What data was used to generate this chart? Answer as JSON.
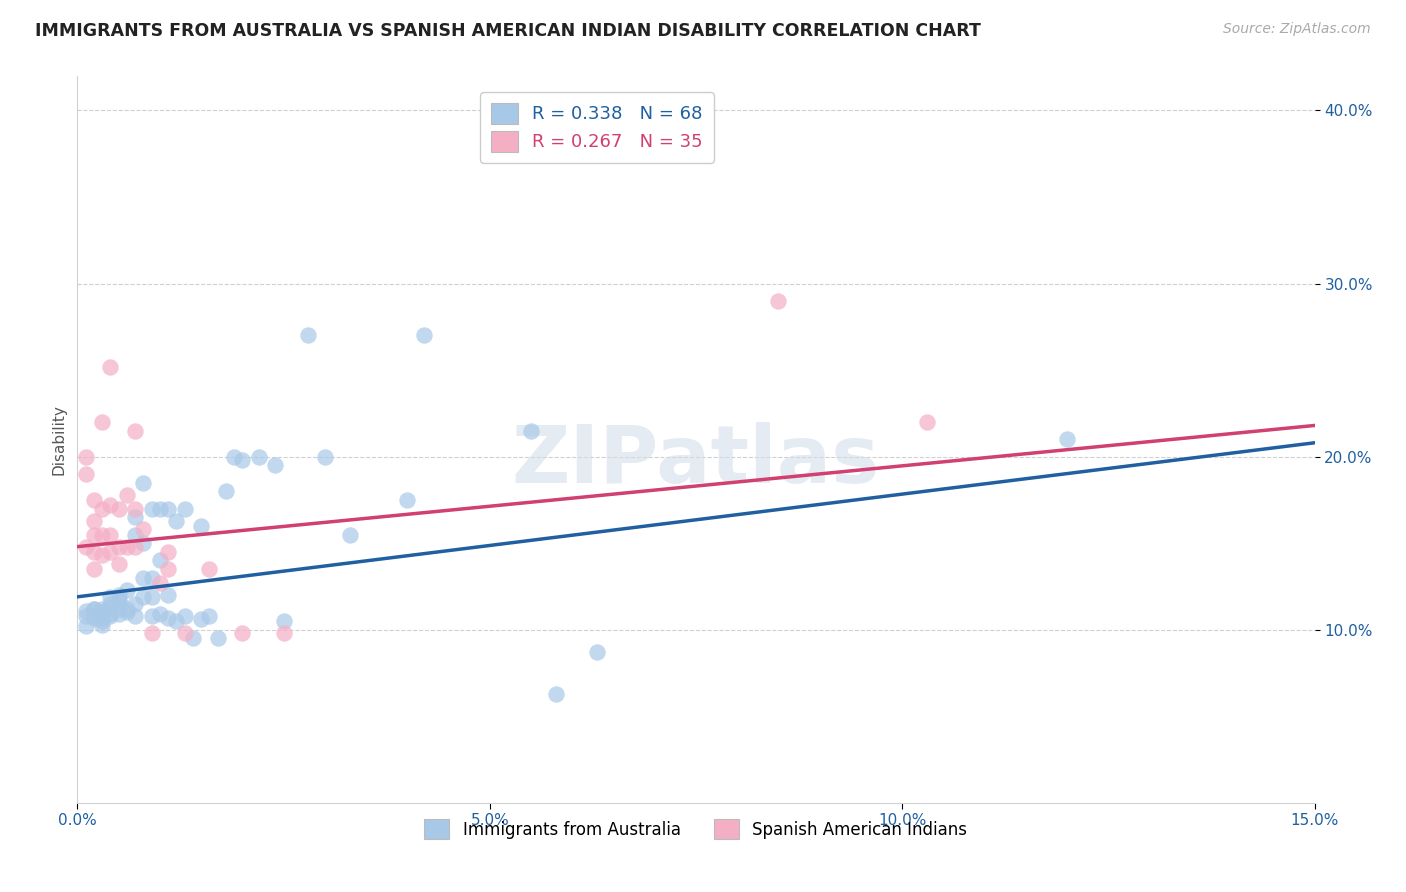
{
  "title": "IMMIGRANTS FROM AUSTRALIA VS SPANISH AMERICAN INDIAN DISABILITY CORRELATION CHART",
  "source": "Source: ZipAtlas.com",
  "ylabel": "Disability",
  "xlim": [
    0.0,
    0.15
  ],
  "ylim": [
    0.0,
    0.42
  ],
  "xticks": [
    0.0,
    0.05,
    0.1,
    0.15
  ],
  "xtick_labels": [
    "0.0%",
    "5.0%",
    "10.0%",
    "15.0%"
  ],
  "yticks": [
    0.1,
    0.2,
    0.3,
    0.4
  ],
  "ytick_labels": [
    "10.0%",
    "20.0%",
    "30.0%",
    "40.0%"
  ],
  "R_blue": 0.338,
  "N_blue": 68,
  "R_pink": 0.267,
  "N_pink": 35,
  "legend_label_blue": "Immigrants from Australia",
  "legend_label_pink": "Spanish American Indians",
  "blue_color": "#a8c8e8",
  "pink_color": "#f4afc5",
  "blue_line_color": "#2060a0",
  "pink_line_color": "#d04070",
  "blue_line_x0": 0.0,
  "blue_line_y0": 0.119,
  "blue_line_x1": 0.15,
  "blue_line_y1": 0.208,
  "pink_line_x0": 0.0,
  "pink_line_y0": 0.148,
  "pink_line_x1": 0.15,
  "pink_line_y1": 0.218,
  "scatter_blue_x": [
    0.001,
    0.001,
    0.001,
    0.002,
    0.002,
    0.002,
    0.002,
    0.003,
    0.003,
    0.003,
    0.003,
    0.003,
    0.003,
    0.004,
    0.004,
    0.004,
    0.004,
    0.004,
    0.005,
    0.005,
    0.005,
    0.005,
    0.005,
    0.006,
    0.006,
    0.006,
    0.007,
    0.007,
    0.007,
    0.007,
    0.008,
    0.008,
    0.008,
    0.008,
    0.009,
    0.009,
    0.009,
    0.009,
    0.01,
    0.01,
    0.01,
    0.011,
    0.011,
    0.011,
    0.012,
    0.012,
    0.013,
    0.013,
    0.014,
    0.015,
    0.015,
    0.016,
    0.017,
    0.018,
    0.019,
    0.02,
    0.022,
    0.024,
    0.025,
    0.028,
    0.03,
    0.033,
    0.04,
    0.042,
    0.055,
    0.058,
    0.063,
    0.12
  ],
  "scatter_blue_y": [
    0.111,
    0.108,
    0.102,
    0.108,
    0.112,
    0.112,
    0.107,
    0.105,
    0.107,
    0.11,
    0.112,
    0.108,
    0.103,
    0.108,
    0.109,
    0.113,
    0.115,
    0.119,
    0.109,
    0.112,
    0.116,
    0.117,
    0.12,
    0.11,
    0.112,
    0.123,
    0.108,
    0.115,
    0.155,
    0.165,
    0.119,
    0.13,
    0.15,
    0.185,
    0.108,
    0.119,
    0.13,
    0.17,
    0.109,
    0.14,
    0.17,
    0.107,
    0.12,
    0.17,
    0.105,
    0.163,
    0.108,
    0.17,
    0.095,
    0.106,
    0.16,
    0.108,
    0.095,
    0.18,
    0.2,
    0.198,
    0.2,
    0.195,
    0.105,
    0.27,
    0.2,
    0.155,
    0.175,
    0.27,
    0.215,
    0.063,
    0.087,
    0.21
  ],
  "scatter_pink_x": [
    0.001,
    0.001,
    0.001,
    0.002,
    0.002,
    0.002,
    0.002,
    0.002,
    0.003,
    0.003,
    0.003,
    0.003,
    0.004,
    0.004,
    0.004,
    0.004,
    0.005,
    0.005,
    0.005,
    0.006,
    0.006,
    0.007,
    0.007,
    0.007,
    0.008,
    0.009,
    0.01,
    0.011,
    0.011,
    0.013,
    0.016,
    0.02,
    0.025,
    0.085,
    0.103
  ],
  "scatter_pink_y": [
    0.148,
    0.19,
    0.2,
    0.135,
    0.145,
    0.155,
    0.163,
    0.175,
    0.143,
    0.155,
    0.17,
    0.22,
    0.145,
    0.155,
    0.172,
    0.252,
    0.138,
    0.148,
    0.17,
    0.148,
    0.178,
    0.148,
    0.17,
    0.215,
    0.158,
    0.098,
    0.127,
    0.135,
    0.145,
    0.098,
    0.135,
    0.098,
    0.098,
    0.29,
    0.22
  ],
  "watermark_text": "ZIPatlas",
  "watermark_color": "#d0dce8",
  "background_color": "#ffffff",
  "grid_color": "#d0d0d0",
  "title_fontsize": 12.5,
  "tick_fontsize": 11,
  "source_fontsize": 10
}
